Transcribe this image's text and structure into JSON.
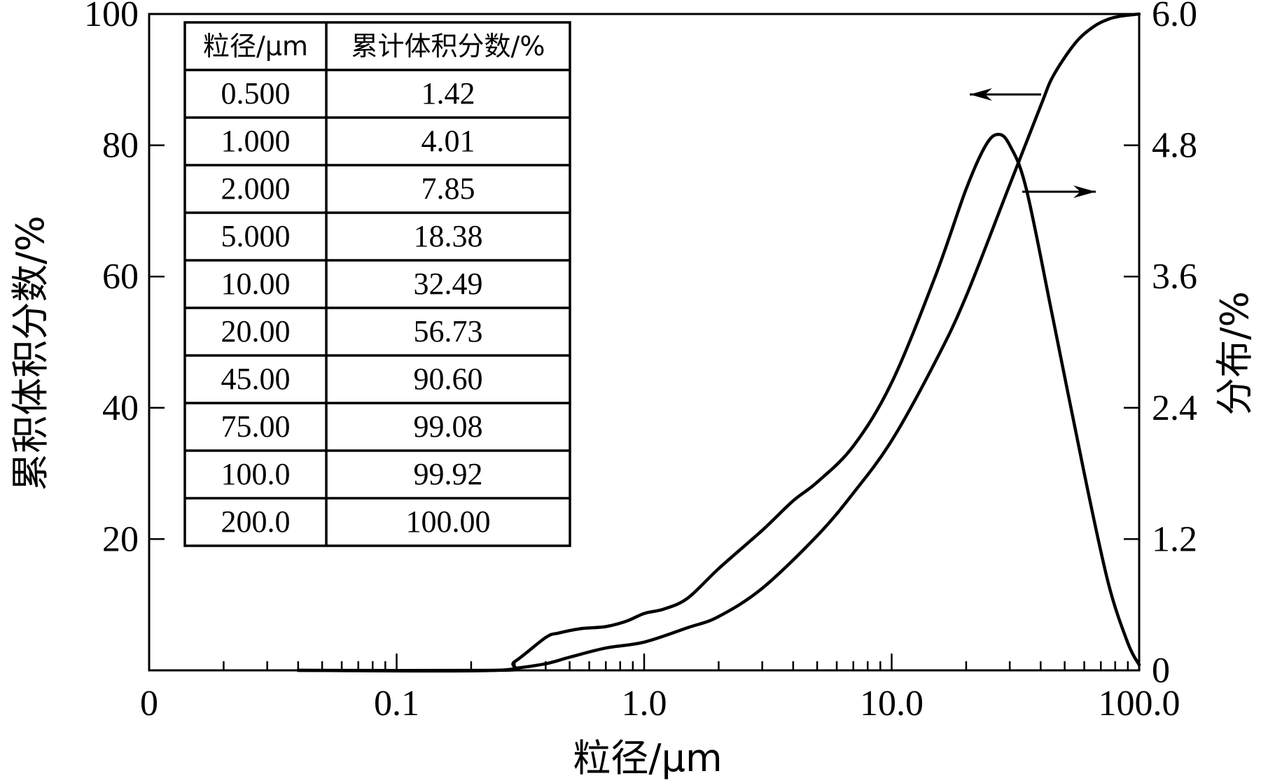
{
  "chart_data": {
    "type": "line",
    "x_scale": "log",
    "xlabel": "粒径/μm",
    "ylabel_left": "累积体积分数/%",
    "ylabel_right": "分布/%",
    "x_tick_labels": [
      "0",
      "0.1",
      "1.0",
      "10.0",
      "100.0"
    ],
    "x_tick_values": [
      0.01,
      0.1,
      1.0,
      10.0,
      100.0
    ],
    "xlim": [
      0.01,
      100.0
    ],
    "ylim_left": [
      0,
      100
    ],
    "ylim_right": [
      0,
      6.0
    ],
    "y_left_ticks": [
      "20",
      "40",
      "60",
      "80",
      "100"
    ],
    "y_left_tick_values": [
      20,
      40,
      60,
      80,
      100
    ],
    "y_right_ticks": [
      "0",
      "1.2",
      "2.4",
      "3.6",
      "4.8",
      "6.0"
    ],
    "y_right_tick_values": [
      0,
      1.2,
      2.4,
      3.6,
      4.8,
      6.0
    ],
    "series": [
      {
        "name": "cumulative",
        "axis": "left",
        "x": [
          0.04,
          0.25,
          0.3,
          0.4,
          0.5,
          0.7,
          1.0,
          1.5,
          2.0,
          3.0,
          5.0,
          7.0,
          10.0,
          15.0,
          20.0,
          30.0,
          40.0,
          45.0,
          55.0,
          65.0,
          75.0,
          85.0,
          100.0
        ],
        "y": [
          0,
          0,
          0.3,
          1.0,
          2.0,
          3.4,
          4.3,
          6.5,
          8.2,
          12.5,
          20.5,
          27.0,
          35.0,
          47.0,
          57.0,
          74.0,
          86.0,
          90.6,
          95.5,
          98.0,
          99.2,
          99.7,
          100.0
        ]
      },
      {
        "name": "distribution",
        "axis": "right",
        "x": [
          0.04,
          0.25,
          0.3,
          0.4,
          0.45,
          0.55,
          0.7,
          0.85,
          1.0,
          1.2,
          1.5,
          2.0,
          3.0,
          4.0,
          5.0,
          7.0,
          10.0,
          15.0,
          20.0,
          24.0,
          27.0,
          30.0,
          35.0,
          45.0,
          60.0,
          75.0,
          90.0,
          100.0
        ],
        "y": [
          0,
          0,
          0.08,
          0.3,
          0.34,
          0.38,
          0.4,
          0.45,
          0.52,
          0.56,
          0.66,
          0.93,
          1.28,
          1.55,
          1.72,
          2.05,
          2.63,
          3.6,
          4.4,
          4.8,
          4.9,
          4.8,
          4.4,
          3.2,
          1.8,
          0.8,
          0.25,
          0.05
        ]
      }
    ],
    "annotations": [
      {
        "type": "arrow",
        "direction": "left",
        "points_to_axis": "left",
        "series": "cumulative"
      },
      {
        "type": "arrow",
        "direction": "right",
        "points_to_axis": "right",
        "series": "distribution"
      }
    ],
    "table": {
      "headers": [
        "粒径/μm",
        "累计体积分数/%"
      ],
      "rows": [
        [
          "0.500",
          "1.42"
        ],
        [
          "1.000",
          "4.01"
        ],
        [
          "2.000",
          "7.85"
        ],
        [
          "5.000",
          "18.38"
        ],
        [
          "10.00",
          "32.49"
        ],
        [
          "20.00",
          "56.73"
        ],
        [
          "45.00",
          "90.60"
        ],
        [
          "75.00",
          "99.08"
        ],
        [
          "100.0",
          "99.92"
        ],
        [
          "200.0",
          "100.00"
        ]
      ]
    }
  }
}
